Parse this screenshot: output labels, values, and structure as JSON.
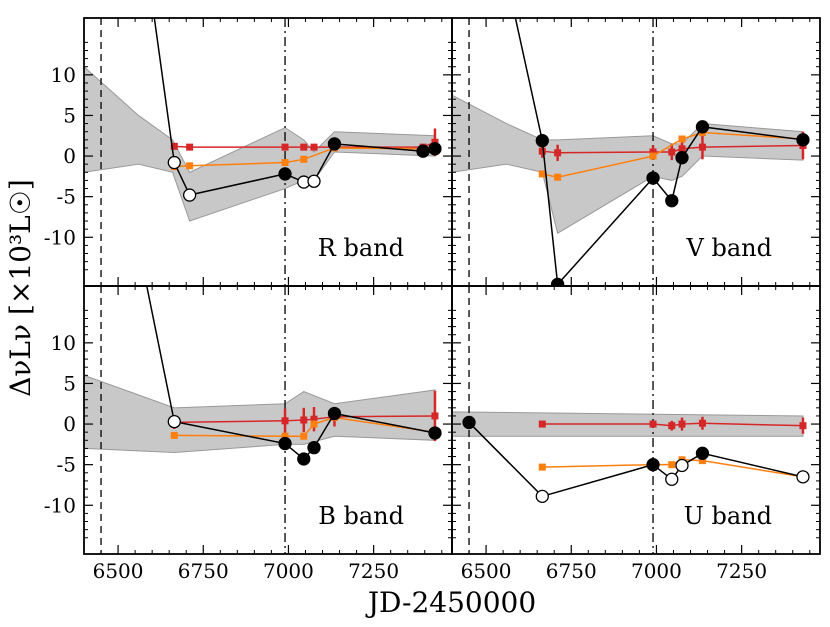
{
  "figure": {
    "xlabel": "JD-2450000",
    "ylabel": "ΔνLν [×10³L☉]",
    "colors": {
      "red_series": "#d62728",
      "orange_series": "#ff7f0e",
      "black_series": "#000000",
      "band_fill": "#c8c8c8",
      "band_edge": "#999999"
    }
  },
  "chart_data": [
    {
      "type": "line",
      "panel": "top-left",
      "band_label": "R band",
      "xlim": [
        6400,
        7480
      ],
      "ylim": [
        -16,
        17
      ],
      "xticks": [
        6500,
        6750,
        7000,
        7250
      ],
      "yticks": [
        -10,
        -5,
        0,
        5,
        10
      ],
      "yticklabels": [
        "-10",
        "-5",
        "0",
        "5",
        "10"
      ],
      "vlines": [
        {
          "x": 6450,
          "style": "dashed"
        },
        {
          "x": 6990,
          "style": "dashdot"
        }
      ],
      "shaded_band": {
        "x": [
          6400,
          6560,
          6660,
          6710,
          6990,
          7045,
          7075,
          7135,
          7430
        ],
        "upper": [
          11,
          5,
          2,
          -2,
          3.5,
          2,
          0.5,
          3,
          2.5
        ],
        "lower": [
          -2,
          -1,
          -2,
          -8,
          -4,
          -3,
          -3,
          0.5,
          0
        ]
      },
      "series": [
        {
          "style": "red",
          "x": [
            6665,
            6710,
            6990,
            7045,
            7075,
            7135,
            7395,
            7430
          ],
          "y": [
            1.2,
            1.1,
            1.1,
            1.1,
            1.1,
            1.1,
            1.1,
            1.7
          ],
          "err": [
            0.3,
            0.3,
            0.3,
            0.3,
            0.3,
            0.3,
            0.3,
            1.7
          ]
        },
        {
          "style": "orange",
          "x": [
            6665,
            6710,
            6990,
            7045,
            7135,
            7430
          ],
          "y": [
            -1.3,
            -1.2,
            -0.8,
            -0.4,
            1,
            0.9
          ]
        },
        {
          "style": "black",
          "x": [
            6590,
            6665,
            6710,
            6990,
            7045,
            7075,
            7135,
            7395,
            7430
          ],
          "y": [
            22,
            -0.8,
            -4.8,
            -2.2,
            -3.2,
            -3.1,
            1.5,
            0.6,
            0.9
          ],
          "filled": [
            false,
            false,
            false,
            true,
            false,
            false,
            true,
            true,
            true
          ]
        }
      ]
    },
    {
      "type": "line",
      "panel": "top-right",
      "band_label": "V band",
      "xlim": [
        6400,
        7480
      ],
      "ylim": [
        -16,
        17
      ],
      "xticks": [
        6500,
        6750,
        7000,
        7250
      ],
      "yticks": [
        -10,
        -5,
        0,
        5,
        10
      ],
      "vlines": [
        {
          "x": 6450,
          "style": "dashed"
        },
        {
          "x": 6990,
          "style": "dashdot"
        }
      ],
      "shaded_band": {
        "x": [
          6400,
          6560,
          6665,
          6710,
          6990,
          7045,
          7075,
          7135,
          7430
        ],
        "upper": [
          7.5,
          4,
          2,
          2,
          2.5,
          1.5,
          1.5,
          4,
          3
        ],
        "lower": [
          -2,
          -1,
          -2,
          -9.5,
          -2.5,
          -3,
          -2.5,
          0,
          -0.5
        ]
      },
      "series": [
        {
          "style": "red",
          "x": [
            6665,
            6710,
            6990,
            7045,
            7075,
            7135,
            7430
          ],
          "y": [
            0.6,
            0.4,
            0.5,
            0.5,
            0.9,
            1.1,
            1.3
          ],
          "err": [
            0.8,
            1,
            0.8,
            1,
            1.5,
            1.5,
            1.7
          ]
        },
        {
          "style": "orange",
          "x": [
            6665,
            6710,
            6990,
            7075,
            7135,
            7430
          ],
          "y": [
            -2.2,
            -2.6,
            0,
            2.1,
            2.9,
            2.1
          ]
        },
        {
          "style": "black",
          "x": [
            6560,
            6665,
            6710,
            6990,
            7045,
            7075,
            7135,
            7430
          ],
          "y": [
            22,
            1.9,
            -15.8,
            -2.7,
            -5.5,
            -0.2,
            3.6,
            2
          ]
        }
      ]
    },
    {
      "type": "line",
      "panel": "bottom-left",
      "band_label": "B band",
      "xlim": [
        6400,
        7480
      ],
      "ylim": [
        -16,
        17
      ],
      "xticks": [
        6500,
        6750,
        7000,
        7250
      ],
      "xticklabels": [
        "6500",
        "6750",
        "7000",
        "7250"
      ],
      "yticks": [
        -10,
        -5,
        0,
        5,
        10
      ],
      "yticklabels": [
        "-10",
        "-5",
        "0",
        "5",
        "10"
      ],
      "vlines": [
        {
          "x": 6450,
          "style": "dashed"
        },
        {
          "x": 6990,
          "style": "dashdot"
        }
      ],
      "shaded_band": {
        "x": [
          6400,
          6665,
          6990,
          7045,
          7135,
          7430
        ],
        "upper": [
          6,
          2,
          2.5,
          4,
          2.5,
          4.2
        ],
        "lower": [
          -3,
          -3.5,
          -2.5,
          -2.5,
          -1.5,
          -2
        ]
      },
      "series": [
        {
          "style": "red",
          "x": [
            6665,
            6990,
            7045,
            7075,
            7135,
            7430
          ],
          "y": [
            0.2,
            0.4,
            0.5,
            0.6,
            0.9,
            1
          ],
          "err": [
            0.8,
            1.5,
            1.5,
            1.5,
            1.2,
            3.1
          ]
        },
        {
          "style": "orange",
          "x": [
            6665,
            6990,
            7045,
            7075,
            7135,
            7430
          ],
          "y": [
            -1.4,
            -1.5,
            -1.5,
            0,
            0.8,
            -1
          ]
        },
        {
          "style": "black",
          "x": [
            6560,
            6665,
            6990,
            7045,
            7075,
            7135,
            7430
          ],
          "y": [
            22,
            0.3,
            -2.4,
            -4.3,
            -2.9,
            1.3,
            -1.1
          ],
          "filled": [
            true,
            false,
            true,
            true,
            true,
            true,
            true
          ]
        }
      ]
    },
    {
      "type": "line",
      "panel": "bottom-right",
      "band_label": "U band",
      "xlim": [
        6400,
        7480
      ],
      "ylim": [
        -16,
        17
      ],
      "xticks": [
        6500,
        6750,
        7000,
        7250
      ],
      "xticklabels": [
        "6500",
        "6750",
        "7000",
        "7250"
      ],
      "yticks": [
        -10,
        -5,
        0,
        5,
        10
      ],
      "vlines": [
        {
          "x": 6450,
          "style": "dashed"
        },
        {
          "x": 6990,
          "style": "dashdot"
        }
      ],
      "shaded_band": {
        "x": [
          6400,
          7430
        ],
        "upper": [
          1.5,
          1
        ],
        "lower": [
          -1.5,
          -1.5
        ]
      },
      "series": [
        {
          "style": "red",
          "x": [
            6665,
            6990,
            7045,
            7075,
            7135,
            7430
          ],
          "y": [
            0,
            0,
            -0.2,
            0,
            0.1,
            -0.2
          ],
          "err": [
            0.4,
            0.4,
            0.6,
            0.8,
            0.8,
            1
          ]
        },
        {
          "style": "orange",
          "x": [
            6665,
            6990,
            7045,
            7075,
            7135,
            7430
          ],
          "y": [
            -5.3,
            -5,
            -5,
            -4.4,
            -4.5,
            -6.5
          ]
        },
        {
          "style": "black",
          "x": [
            6450,
            6665,
            6990,
            7045,
            7075,
            7135,
            7430
          ],
          "y": [
            0.2,
            -8.9,
            -5,
            -6.8,
            -5.1,
            -3.6,
            -6.5
          ],
          "filled": [
            true,
            false,
            true,
            false,
            false,
            true,
            false
          ]
        }
      ]
    }
  ]
}
